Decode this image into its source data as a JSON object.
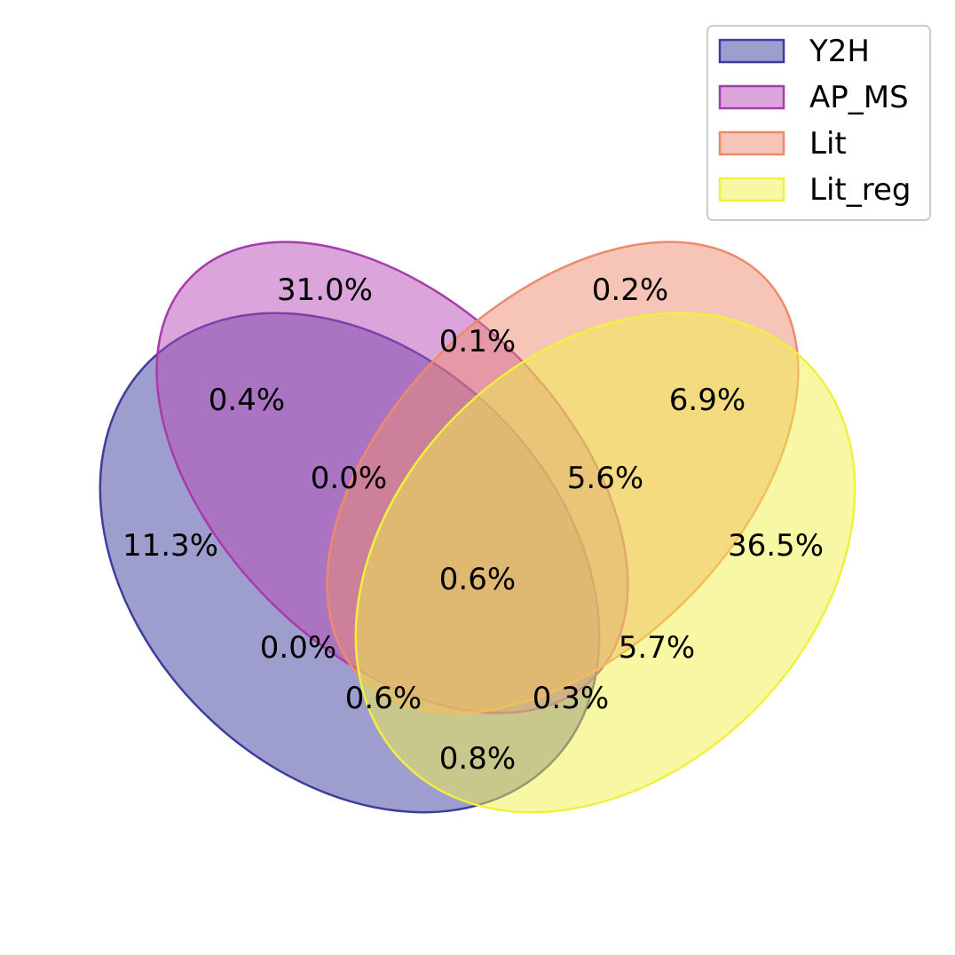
{
  "sets": [
    {
      "name": "Y2H",
      "fill": "#3d3d9e",
      "stroke": "#3d3d9e",
      "fill_opacity": 0.5
    },
    {
      "name": "AP_MS",
      "fill": "#b84ab8",
      "stroke": "#a83aac",
      "fill_opacity": 0.5
    },
    {
      "name": "Lit",
      "fill": "#f08c70",
      "stroke": "#ee8a6c",
      "fill_opacity": 0.5
    },
    {
      "name": "Lit_reg",
      "fill": "#f2f24a",
      "stroke": "#f0f040",
      "fill_opacity": 0.5
    }
  ],
  "regions": {
    "ap_ms_only": "31.0%",
    "lit_only": "0.2%",
    "ap_ms_lit": "0.1%",
    "y2h_ap_ms": "0.4%",
    "lit_lit_reg": "6.9%",
    "y2h_ap_ms_lit": "0.0%",
    "ap_ms_lit_lit_reg": "5.6%",
    "y2h_only": "11.3%",
    "lit_reg_only": "36.5%",
    "all_four": "0.6%",
    "y2h_lit": "0.0%",
    "ap_ms_lit_reg": "5.7%",
    "y2h_lit_lit_reg": "0.6%",
    "y2h_ap_ms_lit_reg": "0.3%",
    "y2h_lit_reg": "0.8%"
  },
  "legend": {
    "items": [
      "Y2H",
      "AP_MS",
      "Lit",
      "Lit_reg"
    ]
  }
}
